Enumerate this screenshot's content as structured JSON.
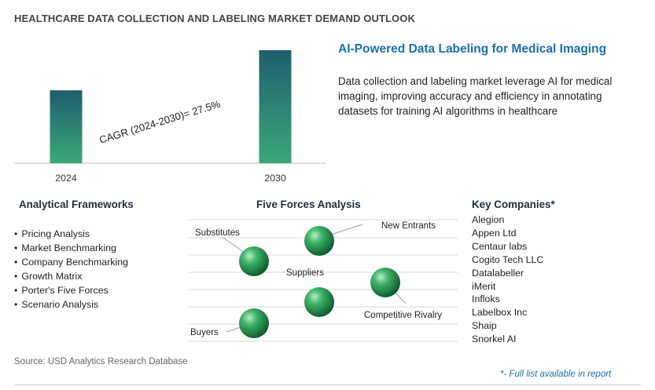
{
  "title": "HEALTHCARE DATA COLLECTION AND LABELING MARKET DEMAND OUTLOOK",
  "chart_data": {
    "type": "bar",
    "categories": [
      "2024",
      "2030"
    ],
    "values": [
      1,
      1.55
    ],
    "annotation": "CAGR (2024-2030)=   27.5%",
    "colors": {
      "bar_top": "#1f5e6e",
      "bar_bottom": "#3aa878",
      "baseline": "#bdbdbd"
    }
  },
  "right_panel": {
    "title": "AI-Powered Data Labeling for Medical Imaging",
    "description": "Data collection and labeling market leverage AI for medical imaging, improving accuracy and efficiency in annotating datasets for training AI algorithms in healthcare"
  },
  "frameworks": {
    "title": "Analytical Frameworks",
    "items": [
      "Pricing Analysis",
      "Market Benchmarking",
      "Company Benchmarking",
      "Growth Matrix",
      "Porter's Five Forces",
      "Scenario Analysis"
    ]
  },
  "five_forces": {
    "title": "Five Forces Analysis",
    "labels": {
      "substitutes": "Substitutes",
      "new_entrants": "New Entrants",
      "suppliers": "Suppliers",
      "competitive_rivalry": "Competitive Rivalry",
      "buyers": "Buyers"
    },
    "colors": {
      "sphere": "#2e9a58",
      "line": "#9e9e9e"
    }
  },
  "companies": {
    "title": "Key Companies*",
    "items": [
      "Alegion",
      "Appen Ltd",
      "Centaur labs",
      "Cogito Tech LLC",
      "Datalabeller",
      "iMerit",
      "Infloks",
      "Labelbox Inc",
      "Shaip",
      "Snorkel AI"
    ]
  },
  "source": "Source: USD Analytics Research Database",
  "footnote": "*- Full list available in report",
  "accent_color": "#1b6fa8"
}
